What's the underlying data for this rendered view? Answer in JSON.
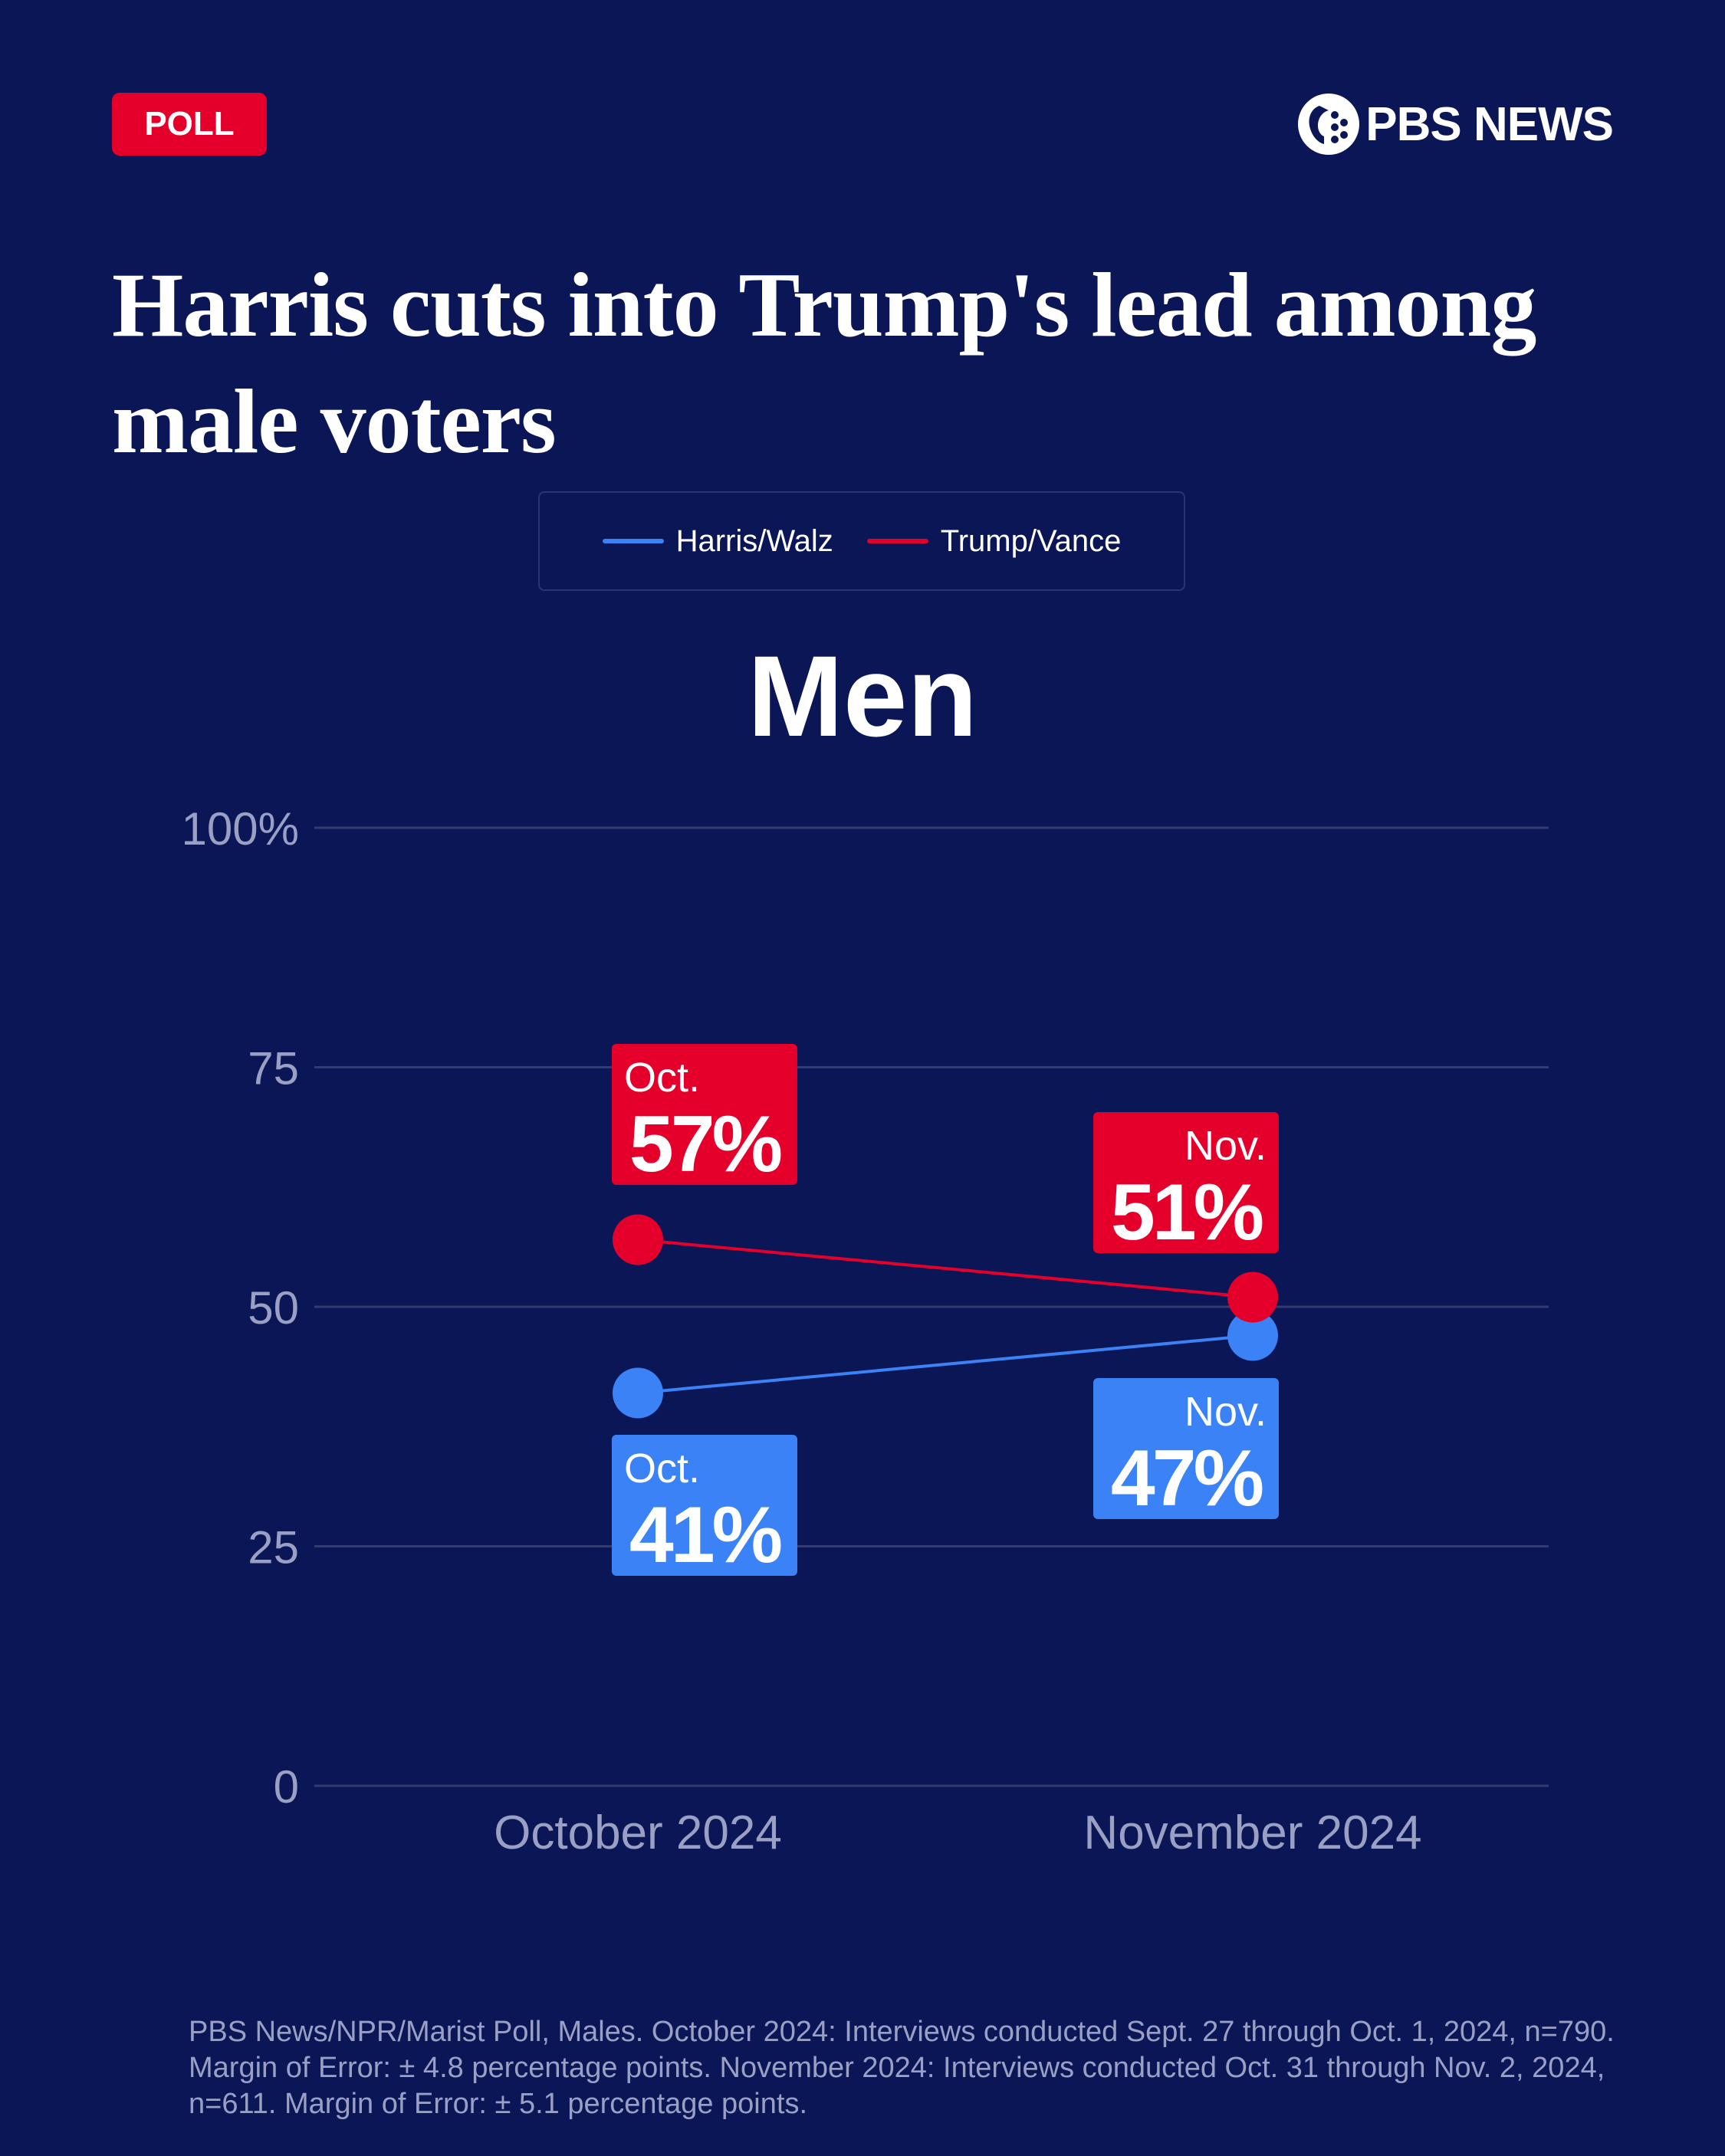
{
  "badge": {
    "label": "POLL"
  },
  "brand": {
    "name": "PBS NEWS",
    "logo_icon": "pbs-head-icon"
  },
  "headline": "Harris cuts into Trump's lead among male voters",
  "colors": {
    "background": "#0b1657",
    "harris": "#3b82f6",
    "trump": "#e4002b",
    "grid": "#323c70",
    "axis_text": "#9aa0c4"
  },
  "chart_data": {
    "type": "line",
    "title": "Men",
    "xlabel": "",
    "ylabel": "",
    "ylim": [
      0,
      100
    ],
    "grid": true,
    "legend_position": "top-center",
    "y_ticks": [
      {
        "value": 0,
        "label": "0"
      },
      {
        "value": 25,
        "label": "25"
      },
      {
        "value": 50,
        "label": "50"
      },
      {
        "value": 75,
        "label": "75"
      },
      {
        "value": 100,
        "label": "100%"
      }
    ],
    "categories": [
      "October 2024",
      "November 2024"
    ],
    "series": [
      {
        "name": "Harris/Walz",
        "color": "#3b82f6",
        "values": [
          41,
          47
        ],
        "point_labels": [
          {
            "month": "Oct.",
            "value": "41%"
          },
          {
            "month": "Nov.",
            "value": "47%"
          }
        ]
      },
      {
        "name": "Trump/Vance",
        "color": "#e4002b",
        "values": [
          57,
          51
        ],
        "point_labels": [
          {
            "month": "Oct.",
            "value": "57%"
          },
          {
            "month": "Nov.",
            "value": "51%"
          }
        ]
      }
    ]
  },
  "source": "PBS News/NPR/Marist Poll, Males. October 2024: Interviews conducted Sept. 27 through Oct. 1, 2024, n=790. Margin of Error: ± 4.8 percentage points. November 2024: Interviews conducted Oct. 31 through Nov. 2, 2024, n=611. Margin of Error: ± 5.1 percentage points."
}
